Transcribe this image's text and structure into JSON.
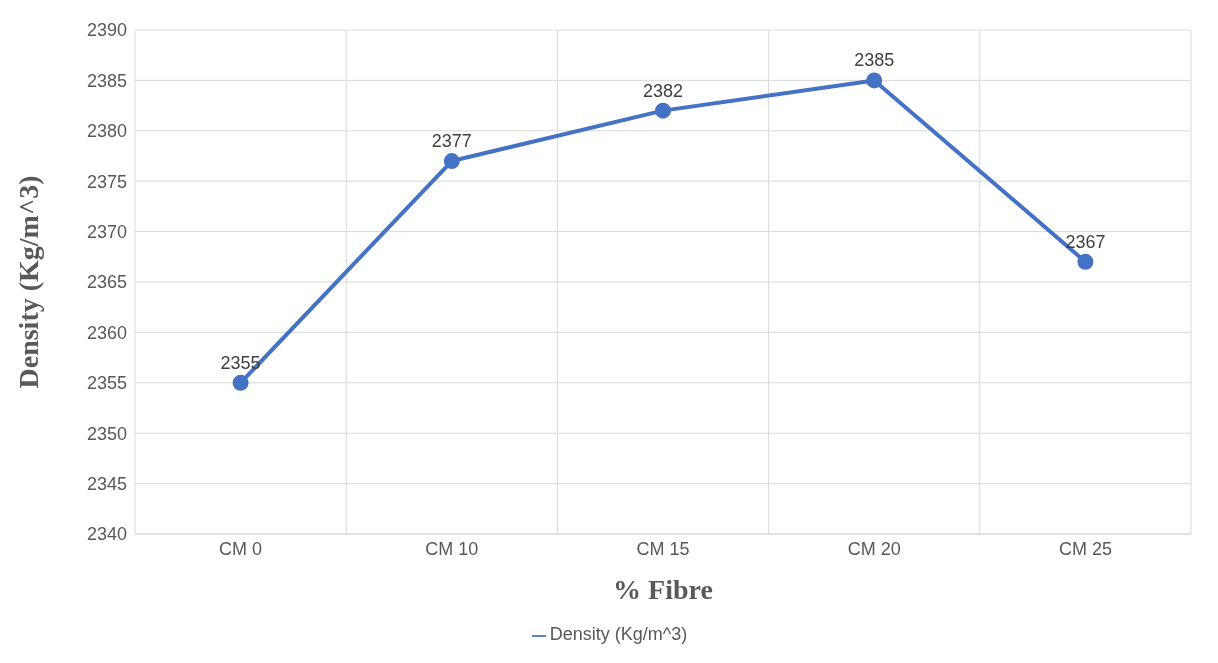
{
  "chart_data": {
    "type": "line",
    "xlabel": "% Fibre",
    "ylabel": "Density (Kg/m^3)",
    "categories": [
      "CM 0",
      "CM 10",
      "CM 15",
      "CM 20",
      "CM 25"
    ],
    "series": [
      {
        "name": "Density (Kg/m^3)",
        "color": "#4472c4",
        "values": [
          2355,
          2377,
          2382,
          2385,
          2367
        ]
      }
    ],
    "ylim": [
      2340,
      2390
    ],
    "yticks": [
      2340,
      2345,
      2350,
      2355,
      2360,
      2365,
      2370,
      2375,
      2380,
      2385,
      2390
    ],
    "grid": true,
    "legend": "bottom",
    "data_labels": true,
    "marker": "circle",
    "line_style": "solid"
  }
}
